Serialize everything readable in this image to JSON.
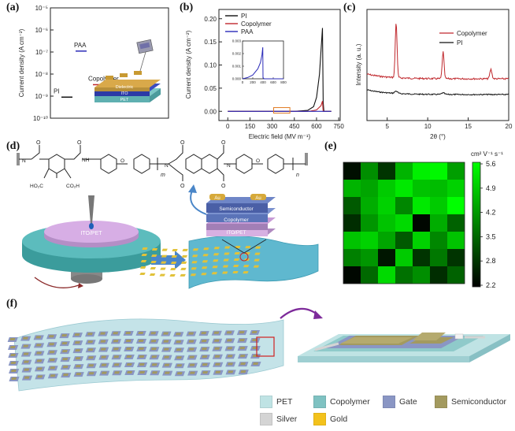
{
  "panels": {
    "a": {
      "label": "(a)"
    },
    "b": {
      "label": "(b)"
    },
    "c": {
      "label": "(c)"
    },
    "d": {
      "label": "(d)"
    },
    "e": {
      "label": "(e)"
    },
    "f": {
      "label": "(f)"
    }
  },
  "chart_data": [
    {
      "panel": "a",
      "type": "scatter",
      "ylabel": "Current density (A cm⁻²)",
      "yscale": "log",
      "ylim": [
        1e-10,
        1e-05
      ],
      "yticks": [
        "10⁻⁵",
        "10⁻⁶",
        "10⁻⁷",
        "10⁻⁸",
        "10⁻⁹",
        "10⁻¹⁰"
      ],
      "series": [
        {
          "name": "PI",
          "value": 9e-10,
          "color": "#111111"
        },
        {
          "name": "PAA",
          "value": 1.1e-07,
          "color": "#2b2bb8"
        },
        {
          "name": "Copolymer",
          "value": 3.3e-09,
          "color": "#c0282d"
        }
      ],
      "inset_labels": {
        "dielectric": "Dielectric",
        "ito": "ITO",
        "pet": "PET"
      }
    },
    {
      "panel": "b",
      "type": "line",
      "xlabel": "Electric field (MV m⁻¹)",
      "ylabel": "Current density (A cm⁻²)",
      "xlim": [
        -60,
        760
      ],
      "ylim": [
        -0.02,
        0.22
      ],
      "xticks": [
        0,
        150,
        300,
        450,
        600,
        750
      ],
      "yticks": [
        0.0,
        0.05,
        0.1,
        0.15,
        0.2
      ],
      "series": [
        {
          "name": "PI",
          "color": "#111111",
          "points": [
            [
              0,
              0
            ],
            [
              450,
              0
            ],
            [
              540,
              0.002
            ],
            [
              580,
              0.01
            ],
            [
              600,
              0.03
            ],
            [
              620,
              0.08
            ],
            [
              640,
              0.18
            ],
            [
              645,
              0.02
            ],
            [
              650,
              0.0
            ],
            [
              700,
              0.0
            ]
          ]
        },
        {
          "name": "Copolymer",
          "color": "#c0282d",
          "points": [
            [
              0,
              0
            ],
            [
              550,
              0
            ],
            [
              600,
              0.003
            ],
            [
              630,
              0.012
            ],
            [
              640,
              0.022
            ],
            [
              645,
              0.0
            ],
            [
              700,
              0.0
            ]
          ]
        },
        {
          "name": "PAA",
          "color": "#2b2bb8",
          "points": [
            [
              0,
              0
            ],
            [
              700,
              0
            ]
          ]
        }
      ],
      "inset": {
        "xlim": [
          0,
          800
        ],
        "ylim": [
          0,
          0.003
        ],
        "xticks": [
          0,
          200,
          400,
          600,
          800
        ],
        "yticks": [
          0.0,
          0.001,
          0.002,
          0.003
        ],
        "points": [
          [
            0,
            0
          ],
          [
            100,
            0.0001
          ],
          [
            200,
            0.0003
          ],
          [
            300,
            0.0008
          ],
          [
            350,
            0.0013
          ],
          [
            380,
            0.0019
          ],
          [
            395,
            0.0025
          ],
          [
            400,
            0.0001
          ],
          [
            420,
            0.0
          ],
          [
            800,
            0.0
          ]
        ],
        "color": "#2b2bb8"
      }
    },
    {
      "panel": "c",
      "type": "line",
      "xlabel": "2θ (°)",
      "ylabel": "Intensity (a. u.)",
      "xlim": [
        2.5,
        20
      ],
      "xticks": [
        5,
        10,
        15,
        20
      ],
      "series": [
        {
          "name": "Copolymer",
          "color": "#c0282d"
        },
        {
          "name": "PI",
          "color": "#111111"
        }
      ]
    },
    {
      "panel": "e",
      "type": "heatmap",
      "colorbar_unit": "cm² V⁻¹ s⁻¹",
      "colorbar_ticks": [
        "5.6",
        "4.9",
        "4.2",
        "3.5",
        "2.8",
        "2.2"
      ],
      "vmin": 2.2,
      "vmax": 5.6,
      "values": [
        [
          2.4,
          4.1,
          2.9,
          4.6,
          5.4,
          5.5,
          4.3
        ],
        [
          4.6,
          4.4,
          4.9,
          5.3,
          4.8,
          4.7,
          5.0
        ],
        [
          3.4,
          4.5,
          5.0,
          4.0,
          5.3,
          4.9,
          5.6
        ],
        [
          2.8,
          4.2,
          4.8,
          5.1,
          2.3,
          4.5,
          3.5
        ],
        [
          4.8,
          5.0,
          4.4,
          3.4,
          5.0,
          4.0,
          4.8
        ],
        [
          3.9,
          4.2,
          2.5,
          4.9,
          2.9,
          3.8,
          2.9
        ],
        [
          2.3,
          3.6,
          5.1,
          3.7,
          4.1,
          2.8,
          3.5
        ]
      ]
    }
  ],
  "panel_d": {
    "substrate_label": "ITO/PET",
    "stack_labels": {
      "au1": "Au",
      "au2": "Au",
      "semiconductor": "Semiconductor",
      "copolymer": "Copolymer",
      "itopet": "ITO/PET"
    },
    "subscripts": {
      "m": "m",
      "n": "n"
    },
    "atoms": {
      "o": "O",
      "nh": "NH",
      "n": "N",
      "cooh": "HO₂C",
      "co2h": "CO₂H"
    }
  },
  "legend": [
    {
      "name": "PET",
      "color": "#bfe3e4"
    },
    {
      "name": "Copolymer",
      "color": "#7fc2c2"
    },
    {
      "name": "Gate",
      "color": "#8a96c4"
    },
    {
      "name": "Semiconductor",
      "color": "#a39a5f"
    },
    {
      "name": "Silver",
      "color": "#d4d4d4"
    },
    {
      "name": "Gold",
      "color": "#f3c21c"
    }
  ]
}
